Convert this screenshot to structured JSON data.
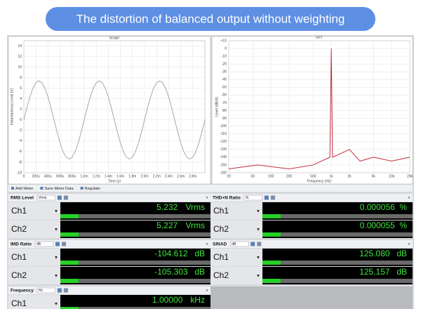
{
  "header": {
    "title": "The distortion of balanced output without weighting"
  },
  "chart_data": [
    {
      "type": "line",
      "title": "Scope",
      "x_label": "Time (s)",
      "y_label": "Instantaneous Level (V)",
      "x": [
        0,
        5e-05,
        0.0001,
        0.00015,
        0.0002,
        0.00025,
        0.0003,
        0.00035,
        0.0004,
        0.00045,
        0.0005,
        0.00055,
        0.0006,
        0.00065,
        0.0007,
        0.00075,
        0.0008,
        0.00085,
        0.0009,
        0.00095,
        0.001,
        0.00105,
        0.0011,
        0.00115,
        0.0012,
        0.00125,
        0.0013,
        0.00135,
        0.0014,
        0.00145,
        0.0015,
        0.00155,
        0.0016,
        0.00165,
        0.0017,
        0.00175,
        0.0018,
        0.00185,
        0.0019,
        0.00195,
        0.002,
        0.00205,
        0.0021,
        0.00215,
        0.0022,
        0.00225,
        0.0023,
        0.00235,
        0.0024,
        0.00245,
        0.0025,
        0.00255,
        0.0026,
        0.00265,
        0.0027,
        0.00275,
        0.0028,
        0.00285,
        0.0029,
        0.00295,
        0.003
      ],
      "series": [
        {
          "color": "#a8a8a8",
          "values": [
            0,
            2.29,
            4.35,
            5.99,
            7.04,
            7.4,
            7.04,
            5.99,
            4.35,
            2.29,
            0,
            -2.29,
            -4.35,
            -5.99,
            -7.04,
            -7.4,
            -7.04,
            -5.99,
            -4.35,
            -2.29,
            0,
            2.29,
            4.35,
            5.99,
            7.04,
            7.4,
            7.04,
            5.99,
            4.35,
            2.29,
            0,
            -2.29,
            -4.35,
            -5.99,
            -7.04,
            -7.4,
            -7.04,
            -5.99,
            -4.35,
            -2.29,
            0,
            2.29,
            4.35,
            5.99,
            7.04,
            7.4,
            7.04,
            5.99,
            4.35,
            2.29,
            0,
            -2.29,
            -4.35,
            -5.99,
            -7.04,
            -7.4,
            -7.04,
            -5.99,
            -4.35,
            -2.29,
            0
          ]
        }
      ],
      "xlim": [
        0,
        0.003
      ],
      "ylim": [
        -10,
        15
      ],
      "xticks": [
        0,
        {
          "value": 0.0002,
          "label": "200u"
        },
        {
          "value": 0.0004,
          "label": "400u"
        },
        {
          "value": 0.0006,
          "label": "600u"
        },
        {
          "value": 0.0008,
          "label": "800u"
        },
        {
          "value": 0.001,
          "label": "1.0m"
        },
        {
          "value": 0.0012,
          "label": "1.2m"
        },
        {
          "value": 0.0014,
          "label": "1.4m"
        },
        {
          "value": 0.0016,
          "label": "1.6m"
        },
        {
          "value": 0.0018,
          "label": "1.8m"
        },
        {
          "value": 0.002,
          "label": "2.0m"
        },
        {
          "value": 0.0022,
          "label": "2.2m"
        },
        {
          "value": 0.0024,
          "label": "2.4m"
        },
        {
          "value": 0.0026,
          "label": "2.6m"
        },
        {
          "value": 0.0028,
          "label": "2.8m"
        }
      ],
      "yticks": [
        -10,
        -8,
        -6,
        -4,
        -2,
        0,
        2,
        4,
        6,
        8,
        10,
        12,
        14
      ],
      "grid": true,
      "log_x": false
    },
    {
      "type": "line",
      "title": "FFT",
      "x_label": "Frequency (Hz)",
      "y_label": "Level (dBrA)",
      "x": [
        20,
        60,
        200,
        500,
        950,
        1000,
        1050,
        2000,
        3000,
        5000,
        10000,
        20000
      ],
      "series": [
        {
          "color": "#c0303a",
          "values": [
            -155,
            -150,
            -155,
            -150,
            -140,
            0,
            -140,
            -130,
            -145,
            -140,
            -145,
            -140
          ]
        }
      ],
      "xlim": [
        20,
        20000
      ],
      "ylim": [
        -160,
        10
      ],
      "xticks": [
        20,
        50,
        100,
        200,
        500,
        {
          "value": 1000,
          "label": "1k"
        },
        {
          "value": 2000,
          "label": "2k"
        },
        {
          "value": 5000,
          "label": "5k"
        },
        {
          "value": 10000,
          "label": "10k"
        },
        {
          "value": 20000,
          "label": "20k"
        }
      ],
      "yticks": [
        -160,
        -150,
        -140,
        -130,
        -120,
        -110,
        -100,
        -90,
        -80,
        -70,
        -60,
        -50,
        -40,
        -30,
        -20,
        -10,
        0,
        {
          "value": 10,
          "label": "+10"
        }
      ],
      "grid": true,
      "log_x": true
    }
  ],
  "toolbar": {
    "items": [
      "Add Meter",
      "Save Meter Data",
      "Regulate"
    ]
  },
  "meters": [
    {
      "name": "RMS Level",
      "unit_select": "Vrms",
      "channels": [
        {
          "label": "Ch1",
          "value": "5.232",
          "unit": "Vrms"
        },
        {
          "label": "Ch2",
          "value": "5.227",
          "unit": "Vrms"
        }
      ]
    },
    {
      "name": "THD+N Ratio",
      "unit_select": "%",
      "channels": [
        {
          "label": "Ch1",
          "value": "0.000056",
          "unit": "%"
        },
        {
          "label": "Ch2",
          "value": "0.000055",
          "unit": "%"
        }
      ]
    },
    {
      "name": "IMD Ratio",
      "unit_select": "dB",
      "channels": [
        {
          "label": "Ch1",
          "value": "-104.612",
          "unit": "dB"
        },
        {
          "label": "Ch2",
          "value": "-105.303",
          "unit": "dB"
        }
      ]
    },
    {
      "name": "SINAD",
      "unit_select": "dB",
      "channels": [
        {
          "label": "Ch1",
          "value": "125.080",
          "unit": "dB"
        },
        {
          "label": "Ch2",
          "value": "125.157",
          "unit": "dB"
        }
      ]
    },
    {
      "name": "Frequency",
      "unit_select": "Hz",
      "channels": [
        {
          "label": "Ch1",
          "value": "1.00000",
          "unit": "kHz"
        }
      ]
    }
  ]
}
